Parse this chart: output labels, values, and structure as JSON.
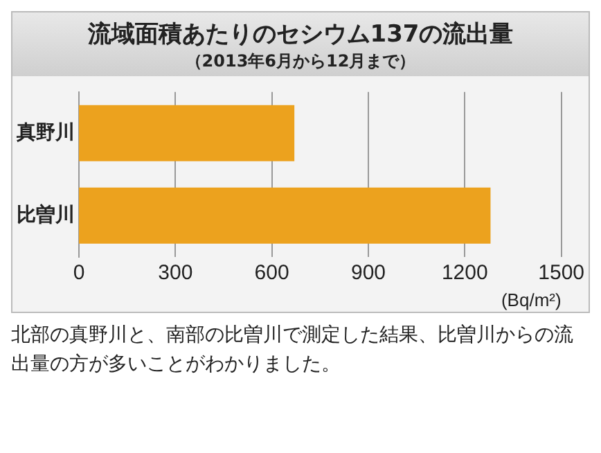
{
  "chart_data": {
    "type": "bar",
    "orientation": "horizontal",
    "title": "流域面積あたりのセシウム137の流出量",
    "subtitle": "（2013年6月から12月まで）",
    "xlabel": "(Bq/m²)",
    "categories": [
      "真野川",
      "比曽川"
    ],
    "values": [
      670,
      1280
    ],
    "color": "#eca21e",
    "xlim": [
      0,
      1500
    ],
    "xticks": [
      0,
      300,
      600,
      900,
      1200,
      1500
    ],
    "grid": "x",
    "legend": false,
    "annotations": [
      "北部の真野川と、南部の比曽川で測定した結果、比曽川からの流出量の方が多いことがわかりました。"
    ]
  }
}
